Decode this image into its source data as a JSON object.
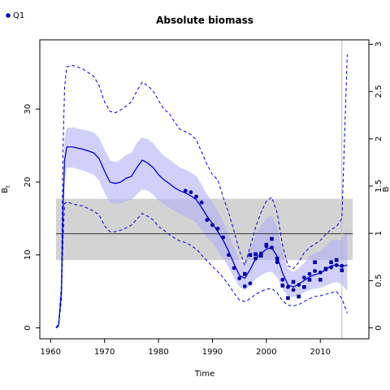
{
  "chart_data": {
    "type": "line",
    "title": "Absolute biomass",
    "xlabel": "Time",
    "ylabel": "B",
    "ylabel_subscript": "t",
    "y2label": "B",
    "legend": [
      {
        "name": "Q1",
        "color": "#0000cc",
        "marker": "circle"
      }
    ],
    "legend_position": "top-left",
    "xlim": [
      1958,
      2019
    ],
    "ylim": [
      -1.5,
      39.5
    ],
    "y2lim": [
      -0.1157,
      3.047
    ],
    "x_ticks": [
      1960,
      1970,
      1980,
      1990,
      2000,
      2010
    ],
    "y_ticks": [
      0,
      10,
      20,
      30
    ],
    "y2_ticks": [
      "0",
      "0.5",
      "1",
      "1.5",
      "2",
      "2.5",
      "3"
    ],
    "y2_tick_values": [
      0,
      0.5,
      1,
      1.5,
      2,
      2.5,
      3
    ],
    "reference_line": {
      "y": 12.9,
      "x_range": [
        1961,
        2016
      ]
    },
    "reference_band": {
      "y_range": [
        9.3,
        17.7
      ],
      "x_range": [
        1961,
        2016
      ]
    },
    "forecast_start": 2014,
    "grid": false,
    "colors": {
      "line": "#0000dd",
      "band": "#b0b0f8",
      "reference_band": "#d3d3d3",
      "points": "#0000aa",
      "forecast_line": "#bbbbbb"
    },
    "series": [
      {
        "name": "Q1",
        "x": [
          1985,
          1986,
          1987,
          1988,
          1989,
          1990,
          1991,
          1992,
          1993,
          1994,
          1995,
          1996,
          1997,
          1998,
          1999,
          2000,
          2001,
          2002,
          2003,
          2004,
          2005,
          2006,
          2007,
          2008,
          2009,
          2010,
          2011,
          2012,
          2013,
          2014
        ],
        "values": [
          18.8,
          18.6,
          18.0,
          17.2,
          14.8,
          14.1,
          13.6,
          12.4,
          10.0,
          8.2,
          6.8,
          5.7,
          6.1,
          9.5,
          10.2,
          11.2,
          11.0,
          9.0,
          6.6,
          5.6,
          5.2,
          5.9,
          6.9,
          7.4,
          7.8,
          7.6,
          8.0,
          8.3,
          8.6,
          8.5
        ]
      },
      {
        "name": "Q1 (second index)",
        "x": [
          1996,
          1997,
          1998,
          1999,
          2000,
          2001,
          2002,
          2003,
          2004,
          2005,
          2006,
          2007,
          2008,
          2009,
          2010,
          2011,
          2012,
          2013,
          2014
        ],
        "values": [
          7.4,
          10.0,
          10.1,
          9.9,
          11.4,
          12.2,
          9.5,
          5.8,
          4.1,
          6.3,
          4.3,
          5.6,
          6.6,
          9.0,
          6.6,
          8.1,
          9.0,
          9.3,
          7.9
        ]
      },
      {
        "name": "median",
        "x": [
          1961,
          1961.5,
          1962,
          1962.3,
          1962.6,
          1963,
          1964,
          1966,
          1968,
          1969,
          1970,
          1971,
          1972,
          1973,
          1974,
          1975,
          1976,
          1977,
          1978,
          1979,
          1980,
          1981,
          1982,
          1983,
          1984,
          1985,
          1986,
          1987,
          1988,
          1989,
          1990,
          1991,
          1992,
          1993,
          1994,
          1995,
          1996,
          1997,
          1998,
          1999,
          2000,
          2001,
          2002,
          2003,
          2004,
          2005,
          2006,
          2007,
          2008,
          2009,
          2010,
          2011,
          2012,
          2013,
          2014,
          2015
        ],
        "values": [
          0,
          0.4,
          5,
          16,
          23,
          24.8,
          24.8,
          24.5,
          24,
          23.2,
          21.5,
          20,
          19.8,
          20,
          20.5,
          20.8,
          22,
          23,
          22.6,
          22,
          21,
          20.3,
          19.8,
          19.2,
          18.8,
          18.5,
          18.1,
          17.6,
          16.5,
          15.3,
          14.3,
          13.2,
          12,
          10.5,
          8.8,
          7.2,
          6.8,
          8,
          9.5,
          10.2,
          10.8,
          11,
          9.8,
          7.5,
          5.9,
          5.6,
          6,
          6.5,
          7,
          7.3,
          7.5,
          8,
          8.5,
          8.6,
          8.4,
          8.6
        ]
      },
      {
        "name": "lower bound",
        "x": [
          1961,
          1961.5,
          1962,
          1962.3,
          1962.6,
          1963,
          1964,
          1966,
          1968,
          1969,
          1970,
          1971,
          1972,
          1973,
          1974,
          1975,
          1976,
          1977,
          1978,
          1979,
          1980,
          1981,
          1982,
          1983,
          1984,
          1985,
          1986,
          1987,
          1988,
          1989,
          1990,
          1991,
          1992,
          1993,
          1994,
          1995,
          1996,
          1997,
          1998,
          1999,
          2000,
          2001,
          2002,
          2003,
          2004,
          2005,
          2006,
          2007,
          2008,
          2009,
          2010,
          2011,
          2012,
          2013,
          2014,
          2015
        ],
        "values": [
          0,
          0.3,
          4.5,
          14,
          20,
          22,
          22,
          21.6,
          21,
          20.2,
          18.5,
          17.2,
          17,
          17.1,
          17.4,
          17.6,
          18.3,
          19,
          18.8,
          18.3,
          17.5,
          16.9,
          16.5,
          16,
          15.6,
          15.3,
          14.9,
          14.4,
          13.4,
          12.4,
          11.6,
          10.6,
          9.6,
          8.3,
          6.9,
          5.6,
          5.2,
          5.8,
          6.7,
          7.2,
          7.6,
          7.7,
          6.9,
          5.3,
          4.4,
          4.2,
          4.4,
          4.9,
          5.2,
          5.4,
          5.5,
          5.8,
          6.1,
          6.3,
          6,
          5
        ]
      },
      {
        "name": "upper bound",
        "x": [
          1961,
          1961.5,
          1962,
          1962.3,
          1962.6,
          1963,
          1964,
          1966,
          1968,
          1969,
          1970,
          1971,
          1972,
          1973,
          1974,
          1975,
          1976,
          1977,
          1978,
          1979,
          1980,
          1981,
          1982,
          1983,
          1984,
          1985,
          1986,
          1987,
          1988,
          1989,
          1990,
          1991,
          1992,
          1993,
          1994,
          1995,
          1996,
          1997,
          1998,
          1999,
          2000,
          2001,
          2002,
          2003,
          2004,
          2005,
          2006,
          2007,
          2008,
          2009,
          2010,
          2011,
          2012,
          2013,
          2014,
          2015
        ],
        "values": [
          0,
          0.5,
          5.5,
          18,
          26,
          27.4,
          27.5,
          27.2,
          26.8,
          26,
          24.5,
          23,
          22.7,
          23.1,
          23.7,
          24,
          25.4,
          26.1,
          25.9,
          25.3,
          24.4,
          23.6,
          23.1,
          22.5,
          22,
          21.7,
          21.3,
          20.8,
          19.6,
          18.3,
          17.2,
          16,
          14.6,
          12.9,
          11.1,
          9.3,
          8.9,
          10.7,
          12.8,
          14,
          15,
          15.4,
          13.8,
          10.4,
          8.1,
          7.6,
          8.2,
          8.9,
          9.8,
          10.3,
          10.6,
          11.2,
          12,
          12.1,
          12,
          13.5
        ]
      },
      {
        "name": "lower 95",
        "x": [
          1961,
          1961.5,
          1962,
          1962.3,
          1962.6,
          1963,
          1964,
          1966,
          1968,
          1969,
          1970,
          1971,
          1972,
          1973,
          1974,
          1975,
          1976,
          1977,
          1978,
          1979,
          1980,
          1981,
          1982,
          1983,
          1984,
          1985,
          1986,
          1987,
          1988,
          1989,
          1990,
          1991,
          1992,
          1993,
          1994,
          1995,
          1996,
          1997,
          1998,
          1999,
          2000,
          2001,
          2002,
          2003,
          2004,
          2005,
          2006,
          2007,
          2008,
          2009,
          2010,
          2011,
          2012,
          2013,
          2014,
          2015
        ],
        "values": [
          0,
          0.2,
          4,
          12,
          17,
          17.3,
          17,
          16.7,
          16,
          15.5,
          14,
          13.2,
          13.2,
          13.4,
          13.7,
          14.1,
          14.9,
          15.7,
          15.3,
          14.8,
          13.9,
          13.4,
          12.8,
          12.3,
          11.9,
          11.7,
          11.3,
          10.8,
          10,
          9.2,
          8.4,
          7.7,
          6.9,
          5.9,
          4.8,
          3.8,
          3.6,
          4,
          4.6,
          5,
          5.3,
          5.4,
          4.8,
          3.7,
          3.1,
          3,
          3.2,
          3.6,
          4,
          4.3,
          4.4,
          4.6,
          4.8,
          5,
          4,
          2
        ]
      },
      {
        "name": "upper 95",
        "x": [
          1961,
          1961.5,
          1962,
          1962.3,
          1962.6,
          1963,
          1964,
          1966,
          1968,
          1969,
          1970,
          1971,
          1972,
          1973,
          1974,
          1975,
          1976,
          1977,
          1978,
          1979,
          1980,
          1981,
          1982,
          1983,
          1984,
          1985,
          1986,
          1987,
          1988,
          1989,
          1990,
          1991,
          1992,
          1993,
          1994,
          1995,
          1996,
          1997,
          1998,
          1999,
          2000,
          2001,
          2002,
          2003,
          2004,
          2005,
          2006,
          2007,
          2008,
          2009,
          2010,
          2011,
          2012,
          2013,
          2014,
          2015
        ],
        "values": [
          0,
          0.6,
          6,
          24,
          33,
          35.8,
          36,
          35.5,
          34.5,
          33.2,
          31,
          29.7,
          29.5,
          29.9,
          30.4,
          31,
          32.5,
          33.7,
          33.2,
          32.5,
          31.2,
          30,
          29.4,
          28.2,
          27.2,
          26.9,
          26.5,
          25.8,
          24.1,
          22.4,
          21,
          20.3,
          17.9,
          15.8,
          13.3,
          10.6,
          8.6,
          11.1,
          13.8,
          15.8,
          17.4,
          17.9,
          15.8,
          11.3,
          8.5,
          8.1,
          9,
          10.3,
          11,
          11.5,
          12,
          12.8,
          13.5,
          13.9,
          15,
          37.5
        ]
      }
    ]
  }
}
